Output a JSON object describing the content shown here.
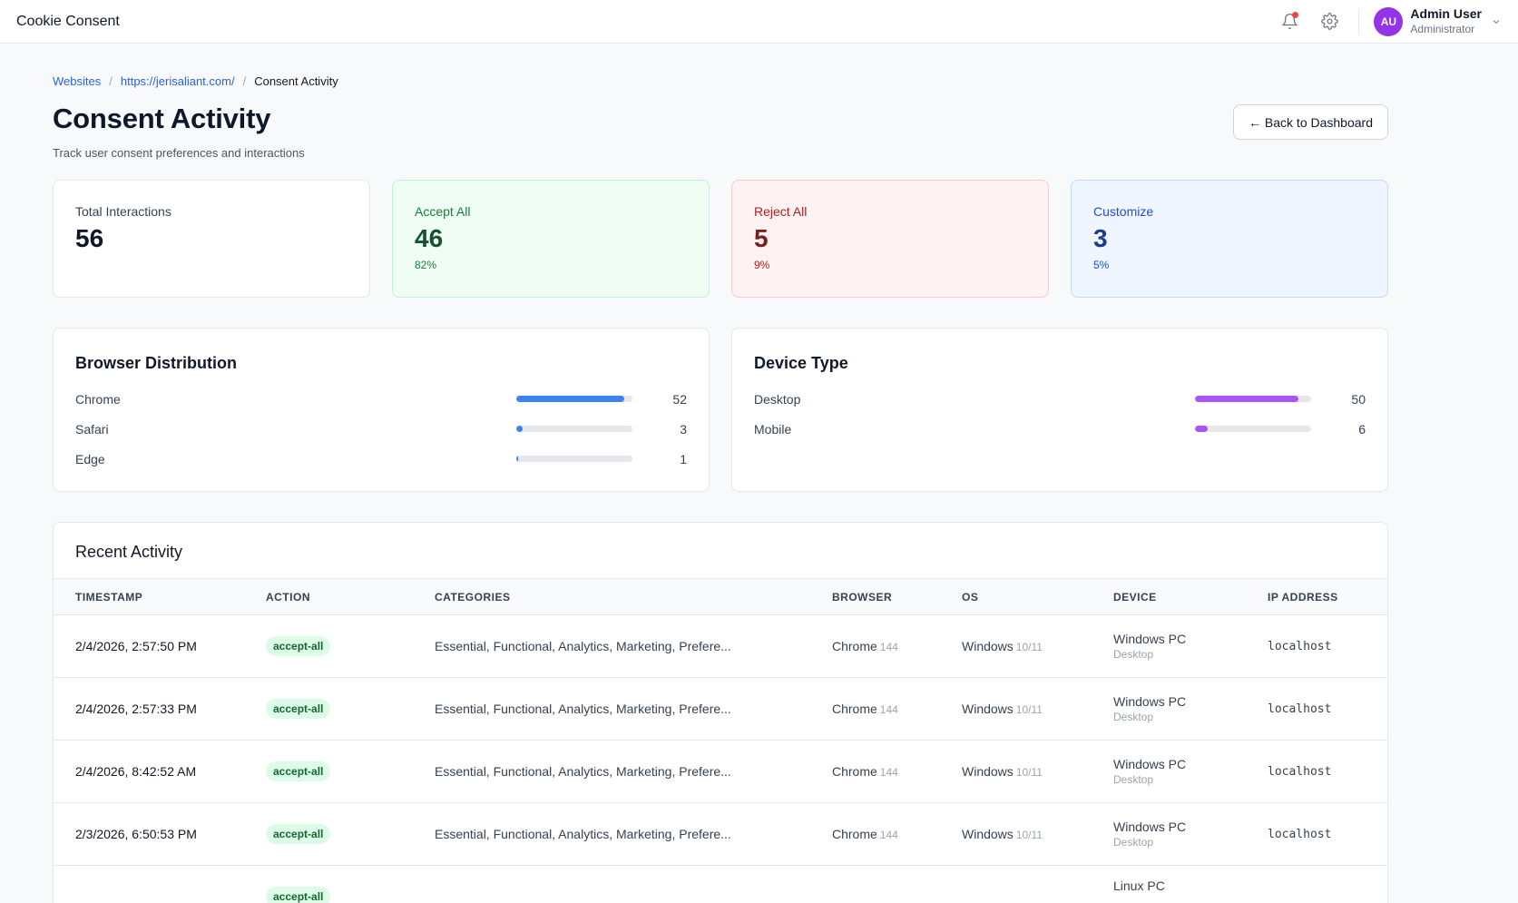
{
  "app": {
    "title": "Cookie Consent"
  },
  "user": {
    "initials": "AU",
    "name": "Admin User",
    "role": "Administrator"
  },
  "breadcrumb": {
    "items": [
      {
        "label": "Websites"
      },
      {
        "label": "https://jerisaliant.com/"
      }
    ],
    "current": "Consent Activity",
    "separator": "/"
  },
  "page": {
    "title": "Consent Activity",
    "subtitle": "Track user consent preferences and interactions",
    "back_label": "← Back to Dashboard"
  },
  "stats": {
    "total": {
      "label": "Total Interactions",
      "value": "56"
    },
    "accept": {
      "label": "Accept All",
      "value": "46",
      "pct": "82%"
    },
    "reject": {
      "label": "Reject All",
      "value": "5",
      "pct": "9%"
    },
    "custom": {
      "label": "Customize",
      "value": "3",
      "pct": "5%"
    }
  },
  "browser_dist": {
    "title": "Browser Distribution",
    "color": "#3b82f6",
    "total": 56,
    "rows": [
      {
        "name": "Chrome",
        "count": 52
      },
      {
        "name": "Safari",
        "count": 3
      },
      {
        "name": "Edge",
        "count": 1
      }
    ]
  },
  "device_dist": {
    "title": "Device Type",
    "color": "#a855f7",
    "total": 56,
    "rows": [
      {
        "name": "Desktop",
        "count": 50
      },
      {
        "name": "Mobile",
        "count": 6
      }
    ]
  },
  "activity": {
    "title": "Recent Activity",
    "columns": [
      "TIMESTAMP",
      "ACTION",
      "CATEGORIES",
      "BROWSER",
      "OS",
      "DEVICE",
      "IP ADDRESS"
    ],
    "rows": [
      {
        "timestamp": "2/4/2026, 2:57:50 PM",
        "action": "accept-all",
        "categories": "Essential, Functional, Analytics, Marketing, Prefere...",
        "browser": "Chrome",
        "browser_ver": "144",
        "os": "Windows",
        "os_ver": "10/11",
        "device": "Windows PC",
        "device_type": "Desktop",
        "ip": "localhost"
      },
      {
        "timestamp": "2/4/2026, 2:57:33 PM",
        "action": "accept-all",
        "categories": "Essential, Functional, Analytics, Marketing, Prefere...",
        "browser": "Chrome",
        "browser_ver": "144",
        "os": "Windows",
        "os_ver": "10/11",
        "device": "Windows PC",
        "device_type": "Desktop",
        "ip": "localhost"
      },
      {
        "timestamp": "2/4/2026, 8:42:52 AM",
        "action": "accept-all",
        "categories": "Essential, Functional, Analytics, Marketing, Prefere...",
        "browser": "Chrome",
        "browser_ver": "144",
        "os": "Windows",
        "os_ver": "10/11",
        "device": "Windows PC",
        "device_type": "Desktop",
        "ip": "localhost"
      },
      {
        "timestamp": "2/3/2026, 6:50:53 PM",
        "action": "accept-all",
        "categories": "Essential, Functional, Analytics, Marketing, Prefere...",
        "browser": "Chrome",
        "browser_ver": "144",
        "os": "Windows",
        "os_ver": "10/11",
        "device": "Windows PC",
        "device_type": "Desktop",
        "ip": "localhost"
      },
      {
        "timestamp": "",
        "action": "accept-all",
        "categories": "",
        "browser": "",
        "browser_ver": "",
        "os": "",
        "os_ver": "",
        "device": "Linux PC",
        "device_type": "",
        "ip": ""
      }
    ]
  },
  "icons": {
    "notifications": "bell-icon",
    "settings": "gear-icon",
    "user_menu": "chevron-down-icon"
  }
}
